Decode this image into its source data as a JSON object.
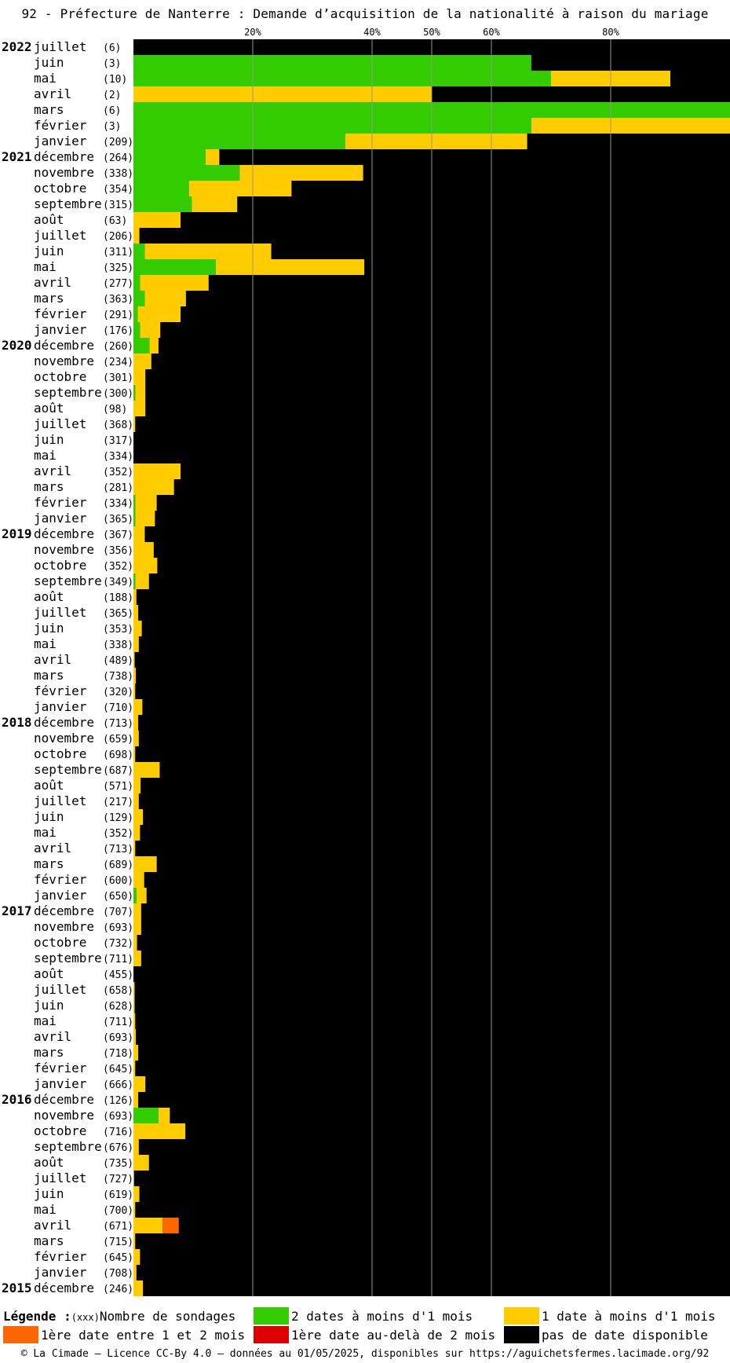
{
  "title": "92 - Préfecture de Nanterre : Demande d’acquisition de la nationalité à raison du mariage",
  "chart_data": {
    "type": "bar",
    "orientation": "horizontal-stacked",
    "x_axis_ticks": [
      "20%",
      "40%",
      "50%",
      "60%",
      "80%"
    ],
    "x_axis_tick_values": [
      20,
      40,
      50,
      60,
      80
    ],
    "xlim": [
      0,
      100
    ],
    "grid": true,
    "series_colors": {
      "green": "#33cc00",
      "yellow": "#ffcc00",
      "orange": "#ff6600",
      "red": "#dd0000",
      "black": "#000000"
    },
    "rows": [
      {
        "year": "2022",
        "month": "juillet",
        "count": "(6)",
        "g": 0,
        "y": 0,
        "o": 0,
        "r": 0
      },
      {
        "year": "",
        "month": "juin",
        "count": "(3)",
        "g": 66.7,
        "y": 0,
        "o": 0,
        "r": 0
      },
      {
        "year": "",
        "month": "mai",
        "count": "(10)",
        "g": 70,
        "y": 20,
        "o": 0,
        "r": 0
      },
      {
        "year": "",
        "month": "avril",
        "count": "(2)",
        "g": 0,
        "y": 50,
        "o": 0,
        "r": 0
      },
      {
        "year": "",
        "month": "mars",
        "count": "(6)",
        "g": 100,
        "y": 0,
        "o": 0,
        "r": 0
      },
      {
        "year": "",
        "month": "février",
        "count": "(3)",
        "g": 66.7,
        "y": 33.3,
        "o": 0,
        "r": 0
      },
      {
        "year": "",
        "month": "janvier",
        "count": "(209)",
        "g": 35.5,
        "y": 30.5,
        "o": 0,
        "r": 0
      },
      {
        "year": "2021",
        "month": "décembre",
        "count": "(264)",
        "g": 12.1,
        "y": 2.3,
        "o": 0,
        "r": 0
      },
      {
        "year": "",
        "month": "novembre",
        "count": "(338)",
        "g": 17.8,
        "y": 20.7,
        "o": 0,
        "r": 0
      },
      {
        "year": "",
        "month": "octobre",
        "count": "(354)",
        "g": 9.3,
        "y": 17.2,
        "o": 0,
        "r": 0
      },
      {
        "year": "",
        "month": "septembre",
        "count": "(315)",
        "g": 9.8,
        "y": 7.6,
        "o": 0,
        "r": 0
      },
      {
        "year": "",
        "month": "août",
        "count": "(63)",
        "g": 0,
        "y": 7.9,
        "o": 0,
        "r": 0
      },
      {
        "year": "",
        "month": "juillet",
        "count": "(206)",
        "g": 0,
        "y": 1,
        "o": 0,
        "r": 0
      },
      {
        "year": "",
        "month": "juin",
        "count": "(311)",
        "g": 1.9,
        "y": 21.2,
        "o": 0,
        "r": 0
      },
      {
        "year": "",
        "month": "mai",
        "count": "(325)",
        "g": 13.8,
        "y": 24.9,
        "o": 0,
        "r": 0
      },
      {
        "year": "",
        "month": "avril",
        "count": "(277)",
        "g": 1.1,
        "y": 11.5,
        "o": 0,
        "r": 0
      },
      {
        "year": "",
        "month": "mars",
        "count": "(363)",
        "g": 1.9,
        "y": 6.9,
        "o": 0,
        "r": 0
      },
      {
        "year": "",
        "month": "février",
        "count": "(291)",
        "g": 0.7,
        "y": 7.2,
        "o": 0,
        "r": 0
      },
      {
        "year": "",
        "month": "janvier",
        "count": "(176)",
        "g": 1.1,
        "y": 3.4,
        "o": 0,
        "r": 0
      },
      {
        "year": "2020",
        "month": "décembre",
        "count": "(260)",
        "g": 2.7,
        "y": 1.5,
        "o": 0,
        "r": 0
      },
      {
        "year": "",
        "month": "novembre",
        "count": "(234)",
        "g": 0,
        "y": 3,
        "o": 0,
        "r": 0
      },
      {
        "year": "",
        "month": "octobre",
        "count": "(301)",
        "g": 0,
        "y": 2,
        "o": 0,
        "r": 0
      },
      {
        "year": "",
        "month": "septembre",
        "count": "(300)",
        "g": 0.3,
        "y": 1.7,
        "o": 0,
        "r": 0
      },
      {
        "year": "",
        "month": "août",
        "count": "(98)",
        "g": 0,
        "y": 2,
        "o": 0,
        "r": 0
      },
      {
        "year": "",
        "month": "juillet",
        "count": "(368)",
        "g": 0,
        "y": 0.3,
        "o": 0,
        "r": 0
      },
      {
        "year": "",
        "month": "juin",
        "count": "(317)",
        "g": 0,
        "y": 0,
        "o": 0,
        "r": 0
      },
      {
        "year": "",
        "month": "mai",
        "count": "(334)",
        "g": 0,
        "y": 0,
        "o": 0,
        "r": 0
      },
      {
        "year": "",
        "month": "avril",
        "count": "(352)",
        "g": 0,
        "y": 7.9,
        "o": 0,
        "r": 0
      },
      {
        "year": "",
        "month": "mars",
        "count": "(281)",
        "g": 0,
        "y": 6.8,
        "o": 0,
        "r": 0
      },
      {
        "year": "",
        "month": "février",
        "count": "(334)",
        "g": 0.3,
        "y": 3.6,
        "o": 0,
        "r": 0
      },
      {
        "year": "",
        "month": "janvier",
        "count": "(365)",
        "g": 0.3,
        "y": 3.3,
        "o": 0,
        "r": 0
      },
      {
        "year": "2019",
        "month": "décembre",
        "count": "(367)",
        "g": 0,
        "y": 1.9,
        "o": 0,
        "r": 0
      },
      {
        "year": "",
        "month": "novembre",
        "count": "(356)",
        "g": 0,
        "y": 3.4,
        "o": 0,
        "r": 0
      },
      {
        "year": "",
        "month": "octobre",
        "count": "(352)",
        "g": 0,
        "y": 4,
        "o": 0,
        "r": 0
      },
      {
        "year": "",
        "month": "septembre",
        "count": "(349)",
        "g": 0.3,
        "y": 2.3,
        "o": 0,
        "r": 0
      },
      {
        "year": "",
        "month": "août",
        "count": "(188)",
        "g": 0,
        "y": 0.5,
        "o": 0,
        "r": 0
      },
      {
        "year": "",
        "month": "juillet",
        "count": "(365)",
        "g": 0,
        "y": 0.8,
        "o": 0,
        "r": 0
      },
      {
        "year": "",
        "month": "juin",
        "count": "(353)",
        "g": 0,
        "y": 1.4,
        "o": 0,
        "r": 0
      },
      {
        "year": "",
        "month": "mai",
        "count": "(338)",
        "g": 0,
        "y": 0.9,
        "o": 0,
        "r": 0
      },
      {
        "year": "",
        "month": "avril",
        "count": "(489)",
        "g": 0,
        "y": 0.2,
        "o": 0,
        "r": 0
      },
      {
        "year": "",
        "month": "mars",
        "count": "(738)",
        "g": 0,
        "y": 0.4,
        "o": 0,
        "r": 0
      },
      {
        "year": "",
        "month": "février",
        "count": "(320)",
        "g": 0,
        "y": 0.3,
        "o": 0,
        "r": 0
      },
      {
        "year": "",
        "month": "janvier",
        "count": "(710)",
        "g": 0,
        "y": 1.5,
        "o": 0,
        "r": 0
      },
      {
        "year": "2018",
        "month": "décembre",
        "count": "(713)",
        "g": 0,
        "y": 0.8,
        "o": 0,
        "r": 0
      },
      {
        "year": "",
        "month": "novembre",
        "count": "(659)",
        "g": 0,
        "y": 0.9,
        "o": 0,
        "r": 0
      },
      {
        "year": "",
        "month": "octobre",
        "count": "(698)",
        "g": 0,
        "y": 0.3,
        "o": 0,
        "r": 0
      },
      {
        "year": "",
        "month": "septembre",
        "count": "(687)",
        "g": 0,
        "y": 4.4,
        "o": 0,
        "r": 0
      },
      {
        "year": "",
        "month": "août",
        "count": "(571)",
        "g": 0,
        "y": 1.2,
        "o": 0,
        "r": 0
      },
      {
        "year": "",
        "month": "juillet",
        "count": "(217)",
        "g": 0,
        "y": 0.9,
        "o": 0,
        "r": 0
      },
      {
        "year": "",
        "month": "juin",
        "count": "(129)",
        "g": 0,
        "y": 1.6,
        "o": 0,
        "r": 0
      },
      {
        "year": "",
        "month": "mai",
        "count": "(352)",
        "g": 0,
        "y": 1.1,
        "o": 0,
        "r": 0
      },
      {
        "year": "",
        "month": "avril",
        "count": "(713)",
        "g": 0,
        "y": 0.3,
        "o": 0,
        "r": 0
      },
      {
        "year": "",
        "month": "mars",
        "count": "(689)",
        "g": 0,
        "y": 3.9,
        "o": 0,
        "r": 0
      },
      {
        "year": "",
        "month": "février",
        "count": "(600)",
        "g": 0,
        "y": 1.8,
        "o": 0,
        "r": 0
      },
      {
        "year": "",
        "month": "janvier",
        "count": "(650)",
        "g": 0.5,
        "y": 1.7,
        "o": 0,
        "r": 0
      },
      {
        "year": "2017",
        "month": "décembre",
        "count": "(707)",
        "g": 0,
        "y": 1.3,
        "o": 0,
        "r": 0
      },
      {
        "year": "",
        "month": "novembre",
        "count": "(693)",
        "g": 0,
        "y": 1.3,
        "o": 0,
        "r": 0
      },
      {
        "year": "",
        "month": "octobre",
        "count": "(732)",
        "g": 0,
        "y": 0.6,
        "o": 0,
        "r": 0
      },
      {
        "year": "",
        "month": "septembre",
        "count": "(711)",
        "g": 0,
        "y": 1.3,
        "o": 0,
        "r": 0
      },
      {
        "year": "",
        "month": "août",
        "count": "(455)",
        "g": 0,
        "y": 0,
        "o": 0,
        "r": 0
      },
      {
        "year": "",
        "month": "juillet",
        "count": "(658)",
        "g": 0,
        "y": 0.2,
        "o": 0,
        "r": 0
      },
      {
        "year": "",
        "month": "juin",
        "count": "(628)",
        "g": 0,
        "y": 0.2,
        "o": 0,
        "r": 0
      },
      {
        "year": "",
        "month": "mai",
        "count": "(711)",
        "g": 0,
        "y": 0.3,
        "o": 0,
        "r": 0
      },
      {
        "year": "",
        "month": "avril",
        "count": "(693)",
        "g": 0,
        "y": 0.4,
        "o": 0,
        "r": 0
      },
      {
        "year": "",
        "month": "mars",
        "count": "(718)",
        "g": 0,
        "y": 0.8,
        "o": 0,
        "r": 0
      },
      {
        "year": "",
        "month": "février",
        "count": "(645)",
        "g": 0,
        "y": 0.3,
        "o": 0,
        "r": 0
      },
      {
        "year": "",
        "month": "janvier",
        "count": "(666)",
        "g": 0,
        "y": 2,
        "o": 0,
        "r": 0
      },
      {
        "year": "2016",
        "month": "décembre",
        "count": "(126)",
        "g": 0,
        "y": 0.8,
        "o": 0,
        "r": 0
      },
      {
        "year": "",
        "month": "novembre",
        "count": "(693)",
        "g": 4.2,
        "y": 1.9,
        "o": 0,
        "r": 0
      },
      {
        "year": "",
        "month": "octobre",
        "count": "(716)",
        "g": 0,
        "y": 8.7,
        "o": 0,
        "r": 0
      },
      {
        "year": "",
        "month": "septembre",
        "count": "(676)",
        "g": 0,
        "y": 0.9,
        "o": 0,
        "r": 0
      },
      {
        "year": "",
        "month": "août",
        "count": "(735)",
        "g": 0,
        "y": 2.6,
        "o": 0,
        "r": 0
      },
      {
        "year": "",
        "month": "juillet",
        "count": "(727)",
        "g": 0,
        "y": 0.1,
        "o": 0,
        "r": 0
      },
      {
        "year": "",
        "month": "juin",
        "count": "(619)",
        "g": 0,
        "y": 1,
        "o": 0,
        "r": 0
      },
      {
        "year": "",
        "month": "mai",
        "count": "(700)",
        "g": 0,
        "y": 0.3,
        "o": 0,
        "r": 0
      },
      {
        "year": "",
        "month": "avril",
        "count": "(671)",
        "g": 0,
        "y": 4.9,
        "o": 2.7,
        "r": 0
      },
      {
        "year": "",
        "month": "mars",
        "count": "(715)",
        "g": 0,
        "y": 0.3,
        "o": 0,
        "r": 0
      },
      {
        "year": "",
        "month": "février",
        "count": "(645)",
        "g": 0,
        "y": 1.1,
        "o": 0,
        "r": 0
      },
      {
        "year": "",
        "month": "janvier",
        "count": "(708)",
        "g": 0,
        "y": 0.5,
        "o": 0,
        "r": 0
      },
      {
        "year": "2015",
        "month": "décembre",
        "count": "(246)",
        "g": 0,
        "y": 1.6,
        "o": 0,
        "r": 0
      }
    ]
  },
  "legend": {
    "title": "Légende :",
    "count_marker": "(xxx)",
    "count_label": "Nombre de sondages",
    "items": [
      {
        "color": "#33cc00",
        "label": "2 dates à moins d'1 mois"
      },
      {
        "color": "#ffcc00",
        "label": "1 date à moins d'1 mois"
      },
      {
        "color": "#ff6600",
        "label": "1ère date entre 1 et 2 mois"
      },
      {
        "color": "#dd0000",
        "label": "1ère date au-delà de 2 mois"
      },
      {
        "color": "#000000",
        "label": "pas de date disponible"
      }
    ]
  },
  "footer": "© La Cimade — Licence CC-By 4.0 — données au 01/05/2025, disponibles sur https://aguichetsfermes.lacimade.org/92"
}
